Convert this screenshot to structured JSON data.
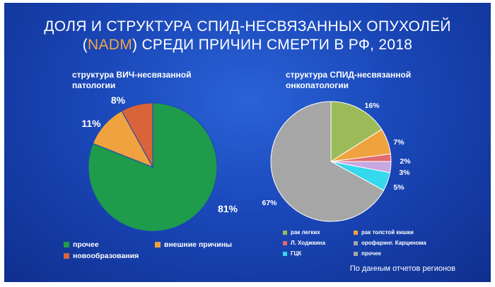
{
  "slide": {
    "title_line1": "ДОЛЯ И СТРУКТУРА СПИД-НЕСВЯЗАННЫХ ОПУХОЛЕЙ",
    "title_line2_open": "(",
    "title_line2_accent": "NADM",
    "title_line2_rest": ") СРЕДИ ПРИЧИН СМЕРТИ В РФ, 2018",
    "accent_color": "#f2a444",
    "footer": "По данным отчетов регионов"
  },
  "chart_data": [
    {
      "type": "pie",
      "title_line1": "структура ВИЧ-несвязанной",
      "title_line2": "патологии",
      "categories": [
        "прочее",
        "внешние причины",
        "новообразования"
      ],
      "values": [
        81,
        11,
        8
      ],
      "labels": [
        "81%",
        "11%",
        "8%"
      ],
      "colors": [
        "#1e9b4b",
        "#f0a23e",
        "#d9643a"
      ],
      "legend_position": "bottom"
    },
    {
      "type": "pie",
      "title_line1": "структура СПИД-несвязанной",
      "title_line2": "онкопатологии",
      "categories": [
        "рак легких",
        "рак толстой кишки",
        "Л. Ходжкина",
        "орофаринг. Карцинома",
        "ГЦК",
        "прочее"
      ],
      "values": [
        16,
        7,
        2,
        3,
        5,
        67
      ],
      "labels": [
        "16%",
        "7%",
        "2%",
        "3%",
        "5%",
        "67%"
      ],
      "colors": [
        "#9bbb59",
        "#f0a23e",
        "#e26b6b",
        "#c8a8e0",
        "#35d8ec",
        "#a6a6a6"
      ],
      "legend_position": "bottom"
    }
  ]
}
